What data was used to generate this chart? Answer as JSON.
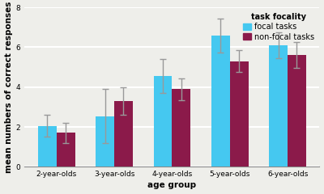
{
  "categories": [
    "2-year-olds",
    "3-year-olds",
    "4-year-olds",
    "5-year-olds",
    "6-year-olds"
  ],
  "focal_means": [
    2.05,
    2.55,
    4.55,
    6.6,
    6.1
  ],
  "nonfocal_means": [
    1.7,
    3.3,
    3.9,
    5.3,
    5.6
  ],
  "focal_errors": [
    0.55,
    1.35,
    0.85,
    0.85,
    0.65
  ],
  "nonfocal_errors": [
    0.5,
    0.7,
    0.55,
    0.55,
    0.65
  ],
  "focal_color": "#45C8F0",
  "nonfocal_color": "#8B1A4A",
  "bar_width": 0.32,
  "ylim": [
    0,
    8
  ],
  "yticks": [
    0,
    2,
    4,
    6,
    8
  ],
  "xlabel": "age group",
  "ylabel": "mean numbers of correct responses",
  "legend_title": "task focality",
  "legend_labels": [
    "focal tasks",
    "non-focal tasks"
  ],
  "background_color": "#eeeeea",
  "grid_color": "#ffffff",
  "axis_fontsize": 7.5,
  "tick_fontsize": 6.5,
  "legend_fontsize": 7.0,
  "errorbar_color": "#999999"
}
